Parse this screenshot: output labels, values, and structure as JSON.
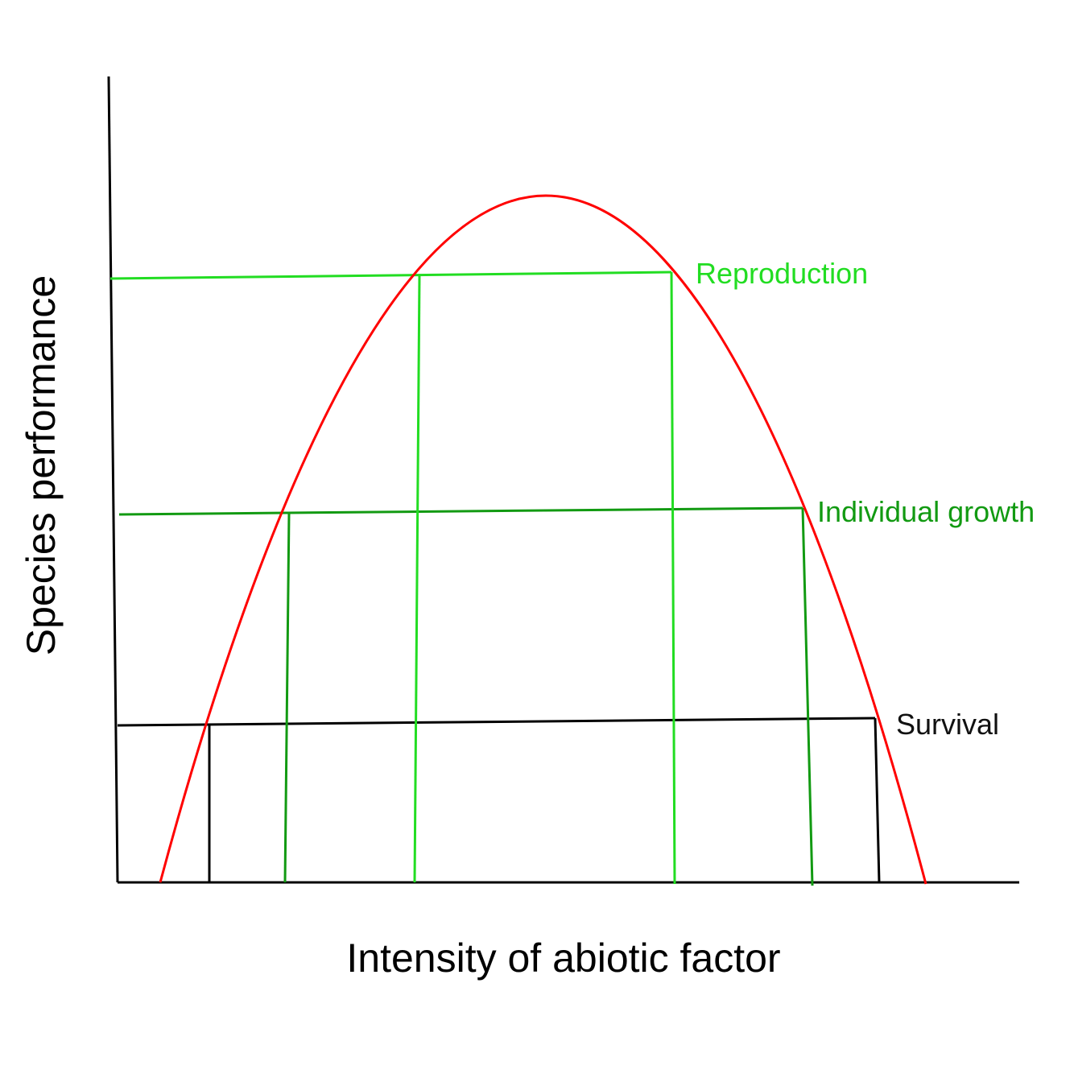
{
  "axes": {
    "x_label": "Intensity of abiotic factor",
    "y_label": "Species performance"
  },
  "curve": {
    "name": "",
    "color": "#ff0000"
  },
  "bands": [
    {
      "key": "reproduction",
      "label": "Reproduction",
      "color": "#22dd22"
    },
    {
      "key": "growth",
      "label": "Individual growth",
      "color": "#129a12"
    },
    {
      "key": "survival",
      "label": "Survival",
      "color": "#000000"
    }
  ]
}
